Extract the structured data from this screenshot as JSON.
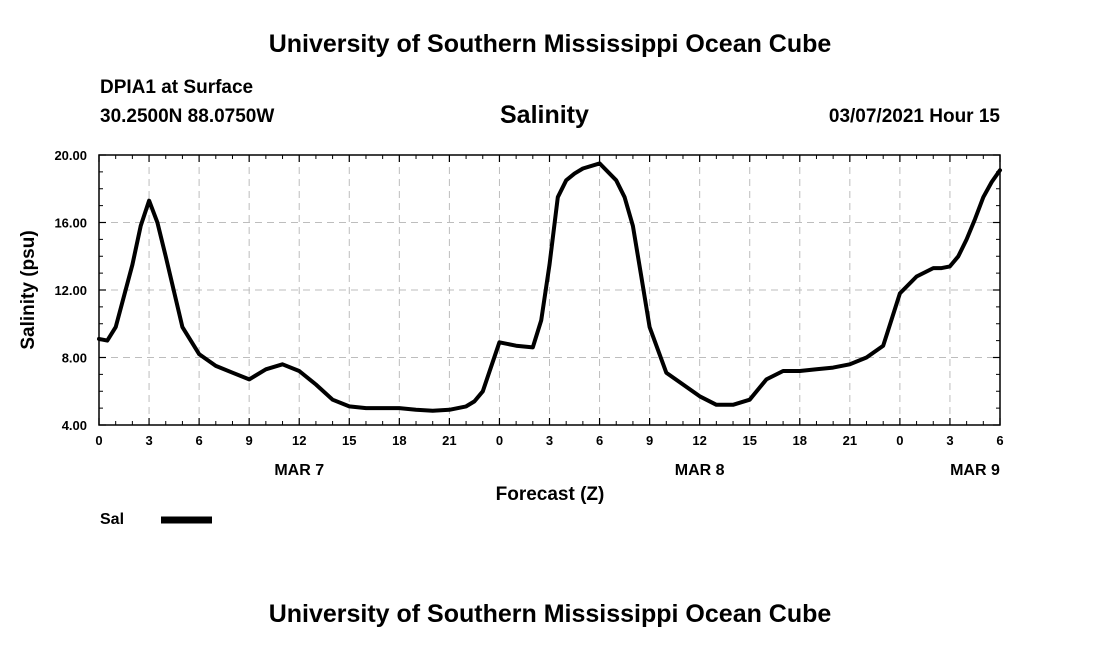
{
  "header": {
    "top_title": "University of Southern Mississippi Ocean Cube",
    "station": "DPIA1 at Surface",
    "coordinates": "30.2500N 88.0750W",
    "chart_title": "Salinity",
    "datetime": "03/07/2021 Hour 15",
    "bottom_title": "University of Southern Mississippi Ocean Cube"
  },
  "chart_data": {
    "type": "line",
    "title": "Salinity",
    "xlabel": "Forecast (Z)",
    "ylabel": "Salinity (psu)",
    "ylim": [
      4,
      20
    ],
    "y_ticks": [
      "4.00",
      "8.00",
      "12.00",
      "16.00",
      "20.00"
    ],
    "xlim": [
      0,
      54
    ],
    "x_ticks": [
      "0",
      "3",
      "6",
      "9",
      "12",
      "15",
      "18",
      "21",
      "0",
      "3",
      "6",
      "9",
      "12",
      "15",
      "18",
      "21",
      "0",
      "3",
      "6"
    ],
    "date_labels": [
      {
        "label": "MAR 7",
        "hour": 12
      },
      {
        "label": "MAR 8",
        "hour": 36
      },
      {
        "label": "MAR 9",
        "hour": 52.5
      }
    ],
    "grid": true,
    "legend": {
      "placement": "bottom-left",
      "entries": [
        "Sal"
      ]
    },
    "series": [
      {
        "name": "Sal",
        "color": "#000000",
        "x": [
          0,
          0.5,
          1,
          2,
          2.5,
          3,
          3.5,
          4,
          5,
          6,
          7,
          8,
          9,
          10,
          11,
          12,
          13,
          14,
          15,
          16,
          17,
          18,
          19,
          20,
          21,
          22,
          22.5,
          23,
          24,
          25,
          26,
          26.5,
          27,
          27.5,
          28,
          28.5,
          29,
          30,
          31,
          31.5,
          32,
          32.5,
          33,
          34,
          35,
          36,
          37,
          38,
          39,
          40,
          41,
          42,
          43,
          44,
          45,
          46,
          47,
          48,
          49,
          50,
          50.5,
          51,
          51.5,
          52,
          52.5,
          53,
          53.5,
          54
        ],
        "y": [
          9.1,
          9.0,
          9.8,
          13.5,
          15.8,
          17.3,
          16.0,
          14.0,
          9.8,
          8.2,
          7.5,
          7.1,
          6.7,
          7.3,
          7.6,
          7.2,
          6.4,
          5.5,
          5.1,
          5.0,
          5.0,
          5.0,
          4.9,
          4.85,
          4.9,
          5.1,
          5.4,
          6.0,
          8.9,
          8.7,
          8.6,
          10.2,
          13.5,
          17.5,
          18.5,
          18.9,
          19.2,
          19.5,
          18.5,
          17.5,
          15.8,
          12.8,
          9.8,
          7.1,
          6.4,
          5.7,
          5.2,
          5.2,
          5.5,
          6.7,
          7.2,
          7.2,
          7.3,
          7.4,
          7.6,
          8.0,
          8.7,
          11.8,
          12.8,
          13.3,
          13.3,
          13.4,
          14.0,
          15.0,
          16.2,
          17.5,
          18.4,
          19.1
        ]
      }
    ]
  }
}
